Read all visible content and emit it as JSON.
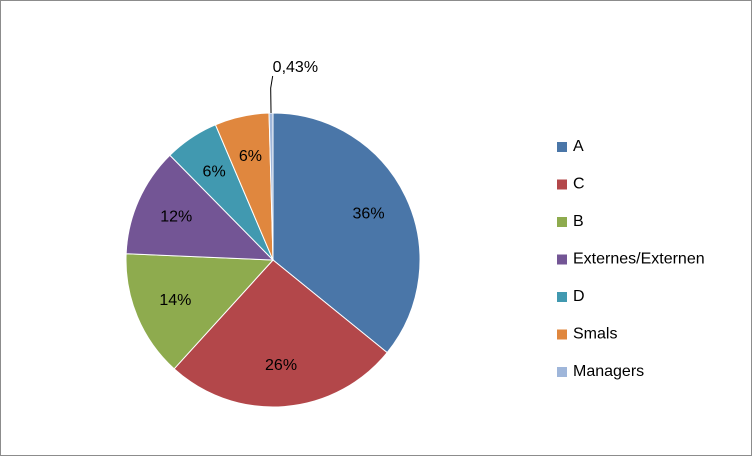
{
  "chart_data": {
    "type": "pie",
    "categories": [
      "A",
      "C",
      "B",
      "Externes/Externen",
      "D",
      "Smals",
      "Managers"
    ],
    "values": [
      36,
      26,
      14,
      12,
      6,
      6,
      0.43
    ],
    "value_labels": [
      "36%",
      "26%",
      "14%",
      "12%",
      "6%",
      "6%",
      "0,43%"
    ],
    "colors": [
      "#4a76a8",
      "#b3474a",
      "#8eab4e",
      "#735595",
      "#4199b0",
      "#e0873e",
      "#9fb6da"
    ],
    "legend": "right"
  }
}
